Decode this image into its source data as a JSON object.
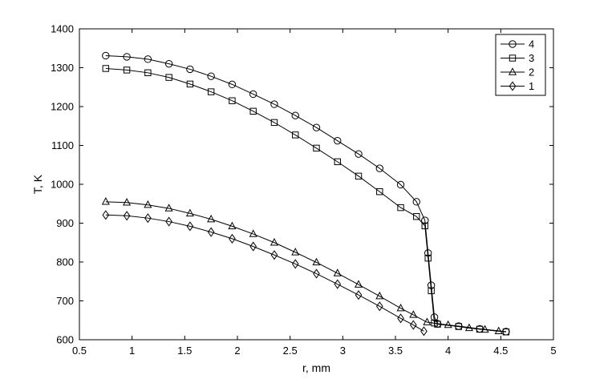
{
  "chart_data": {
    "type": "line",
    "title": "",
    "xlabel": "r, mm",
    "ylabel": "T, K",
    "xlim": [
      0.5,
      5
    ],
    "ylim": [
      600,
      1400
    ],
    "xticks": [
      0.5,
      1,
      1.5,
      2,
      2.5,
      3,
      3.5,
      4,
      4.5,
      5
    ],
    "xtick_labels": [
      "0.5",
      "1",
      "1.5",
      "2",
      "2.5",
      "3",
      "3.5",
      "4",
      "4.5",
      "5"
    ],
    "yticks": [
      600,
      700,
      800,
      900,
      1000,
      1100,
      1200,
      1300,
      1400
    ],
    "ytick_labels": [
      "600",
      "700",
      "800",
      "900",
      "1000",
      "1100",
      "1200",
      "1300",
      "1400"
    ],
    "grid": false,
    "legend_position": "top-right",
    "line_color": "#000000",
    "series": [
      {
        "name": "4",
        "marker": "circle",
        "x": [
          0.75,
          0.95,
          1.15,
          1.35,
          1.55,
          1.75,
          1.95,
          2.15,
          2.35,
          2.55,
          2.75,
          2.95,
          3.15,
          3.35,
          3.55,
          3.7,
          3.78,
          3.81,
          3.84,
          3.87,
          3.9,
          4.1,
          4.3,
          4.55
        ],
        "y": [
          1331,
          1328,
          1322,
          1310,
          1296,
          1278,
          1257,
          1232,
          1206,
          1177,
          1146,
          1112,
          1078,
          1041,
          999,
          955,
          907,
          823,
          740,
          658,
          641,
          635,
          628,
          621
        ]
      },
      {
        "name": "3",
        "marker": "square",
        "x": [
          0.75,
          0.95,
          1.15,
          1.35,
          1.55,
          1.75,
          1.95,
          2.15,
          2.35,
          2.55,
          2.75,
          2.95,
          3.15,
          3.35,
          3.55,
          3.7,
          3.78,
          3.81,
          3.84,
          3.87,
          3.9,
          4.1,
          4.3,
          4.55
        ],
        "y": [
          1298,
          1294,
          1287,
          1275,
          1258,
          1238,
          1215,
          1188,
          1159,
          1127,
          1093,
          1058,
          1021,
          981,
          940,
          917,
          893,
          810,
          726,
          643,
          640,
          634,
          627,
          620
        ]
      },
      {
        "name": "2",
        "marker": "triangle",
        "x": [
          0.75,
          0.95,
          1.15,
          1.35,
          1.55,
          1.75,
          1.95,
          2.15,
          2.35,
          2.55,
          2.75,
          2.95,
          3.15,
          3.35,
          3.55,
          3.67,
          3.8,
          4.0,
          4.2,
          4.35,
          4.48
        ],
        "y": [
          955,
          953,
          947,
          938,
          925,
          910,
          892,
          872,
          850,
          825,
          799,
          771,
          742,
          712,
          681,
          664,
          645,
          638,
          630,
          626,
          622
        ]
      },
      {
        "name": "1",
        "marker": "diamond",
        "x": [
          0.75,
          0.95,
          1.15,
          1.35,
          1.55,
          1.75,
          1.95,
          2.15,
          2.35,
          2.55,
          2.75,
          2.95,
          3.15,
          3.35,
          3.55,
          3.67,
          3.77
        ],
        "y": [
          921,
          919,
          913,
          904,
          892,
          877,
          860,
          840,
          818,
          795,
          770,
          743,
          715,
          686,
          655,
          638,
          622
        ]
      }
    ]
  }
}
